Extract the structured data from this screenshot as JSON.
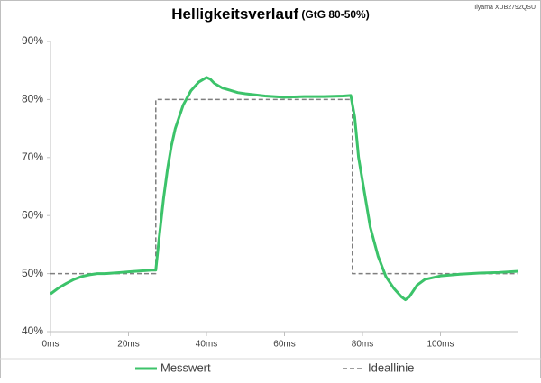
{
  "chart_data": {
    "type": "line",
    "title": "Helligkeitsverlauf",
    "subtitle": "(GtG 80-50%)",
    "annotation": "Iiyama XUB2792QSU",
    "xlim": [
      0,
      120
    ],
    "xticks": [
      {
        "value": 0,
        "label": "0ms"
      },
      {
        "value": 20,
        "label": "20ms"
      },
      {
        "value": 40,
        "label": "40ms"
      },
      {
        "value": 60,
        "label": "60ms"
      },
      {
        "value": 80,
        "label": "80ms"
      },
      {
        "value": 100,
        "label": "100ms"
      }
    ],
    "ylim": [
      40,
      90
    ],
    "yticks": [
      {
        "value": 40,
        "label": "40%"
      },
      {
        "value": 50,
        "label": "50%"
      },
      {
        "value": 60,
        "label": "60%"
      },
      {
        "value": 70,
        "label": "70%"
      },
      {
        "value": 80,
        "label": "80%"
      },
      {
        "value": 90,
        "label": "90%"
      }
    ],
    "grid": false,
    "legend": "bottom",
    "series": [
      {
        "name": "Messwert",
        "color": "#3cc36a",
        "dash": false,
        "x": [
          0,
          2,
          4,
          6,
          8,
          10,
          12,
          14,
          16,
          18,
          20,
          22,
          24,
          26,
          27,
          28,
          29,
          30,
          31,
          32,
          34,
          36,
          38,
          40,
          41,
          42,
          44,
          46,
          48,
          50,
          55,
          60,
          65,
          70,
          75,
          77,
          78,
          79,
          80,
          81,
          82,
          84,
          86,
          88,
          90,
          91,
          92,
          94,
          96,
          100,
          105,
          110,
          115,
          120
        ],
        "values": [
          46.5,
          47.5,
          48.3,
          49,
          49.5,
          49.8,
          50,
          50,
          50.1,
          50.2,
          50.3,
          50.4,
          50.5,
          50.6,
          50.6,
          57,
          63,
          68,
          72,
          75,
          79,
          81.5,
          83,
          83.8,
          83.5,
          82.8,
          82,
          81.6,
          81.2,
          81,
          80.6,
          80.4,
          80.5,
          80.5,
          80.6,
          80.7,
          77,
          70,
          66,
          62,
          58,
          53,
          49.5,
          47.5,
          46,
          45.5,
          46,
          48,
          49,
          49.6,
          49.9,
          50.1,
          50.2,
          50.4
        ]
      },
      {
        "name": "Ideallinie",
        "color": "#7f7f7f",
        "dash": true,
        "x": [
          0,
          27,
          27,
          77.4,
          77.4,
          120
        ],
        "values": [
          50,
          50,
          80,
          80,
          50,
          50
        ]
      }
    ]
  }
}
